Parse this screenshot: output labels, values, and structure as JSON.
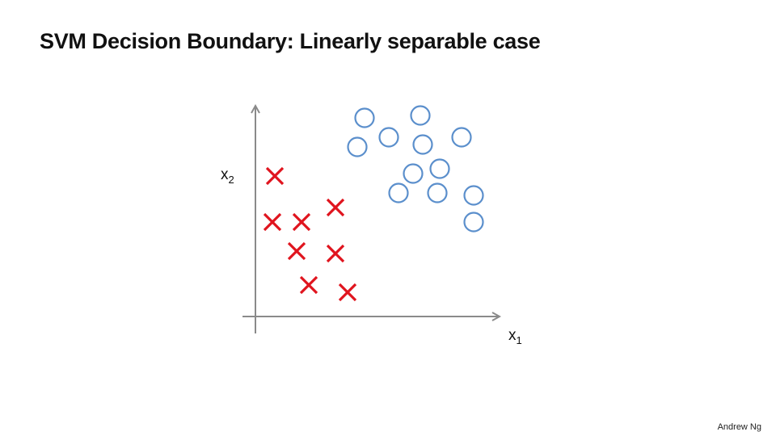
{
  "slide": {
    "title": "SVM Decision Boundary: Linearly separable case",
    "author": "Andrew Ng"
  },
  "chart_data": {
    "type": "scatter",
    "xlabel": "x",
    "xlabel_subscript": "1",
    "ylabel": "x",
    "ylabel_subscript": "2",
    "xlim": [
      0,
      10
    ],
    "ylim": [
      0,
      8.8
    ],
    "grid": false,
    "legend": "none",
    "series": [
      {
        "marker": "cross",
        "color": "#e0141e",
        "points": [
          [
            0.8,
            5.8
          ],
          [
            0.7,
            3.9
          ],
          [
            1.9,
            3.9
          ],
          [
            3.3,
            4.5
          ],
          [
            1.7,
            2.7
          ],
          [
            3.3,
            2.6
          ],
          [
            2.2,
            1.3
          ],
          [
            3.8,
            1.0
          ]
        ]
      },
      {
        "marker": "circle",
        "color": "#5b8fcc",
        "points": [
          [
            4.5,
            8.2
          ],
          [
            6.8,
            8.3
          ],
          [
            5.5,
            7.4
          ],
          [
            8.5,
            7.4
          ],
          [
            4.2,
            7.0
          ],
          [
            6.9,
            7.1
          ],
          [
            7.6,
            6.1
          ],
          [
            6.5,
            5.9
          ],
          [
            5.9,
            5.1
          ],
          [
            7.5,
            5.1
          ],
          [
            9.0,
            5.0
          ],
          [
            9.0,
            3.9
          ]
        ]
      }
    ]
  }
}
